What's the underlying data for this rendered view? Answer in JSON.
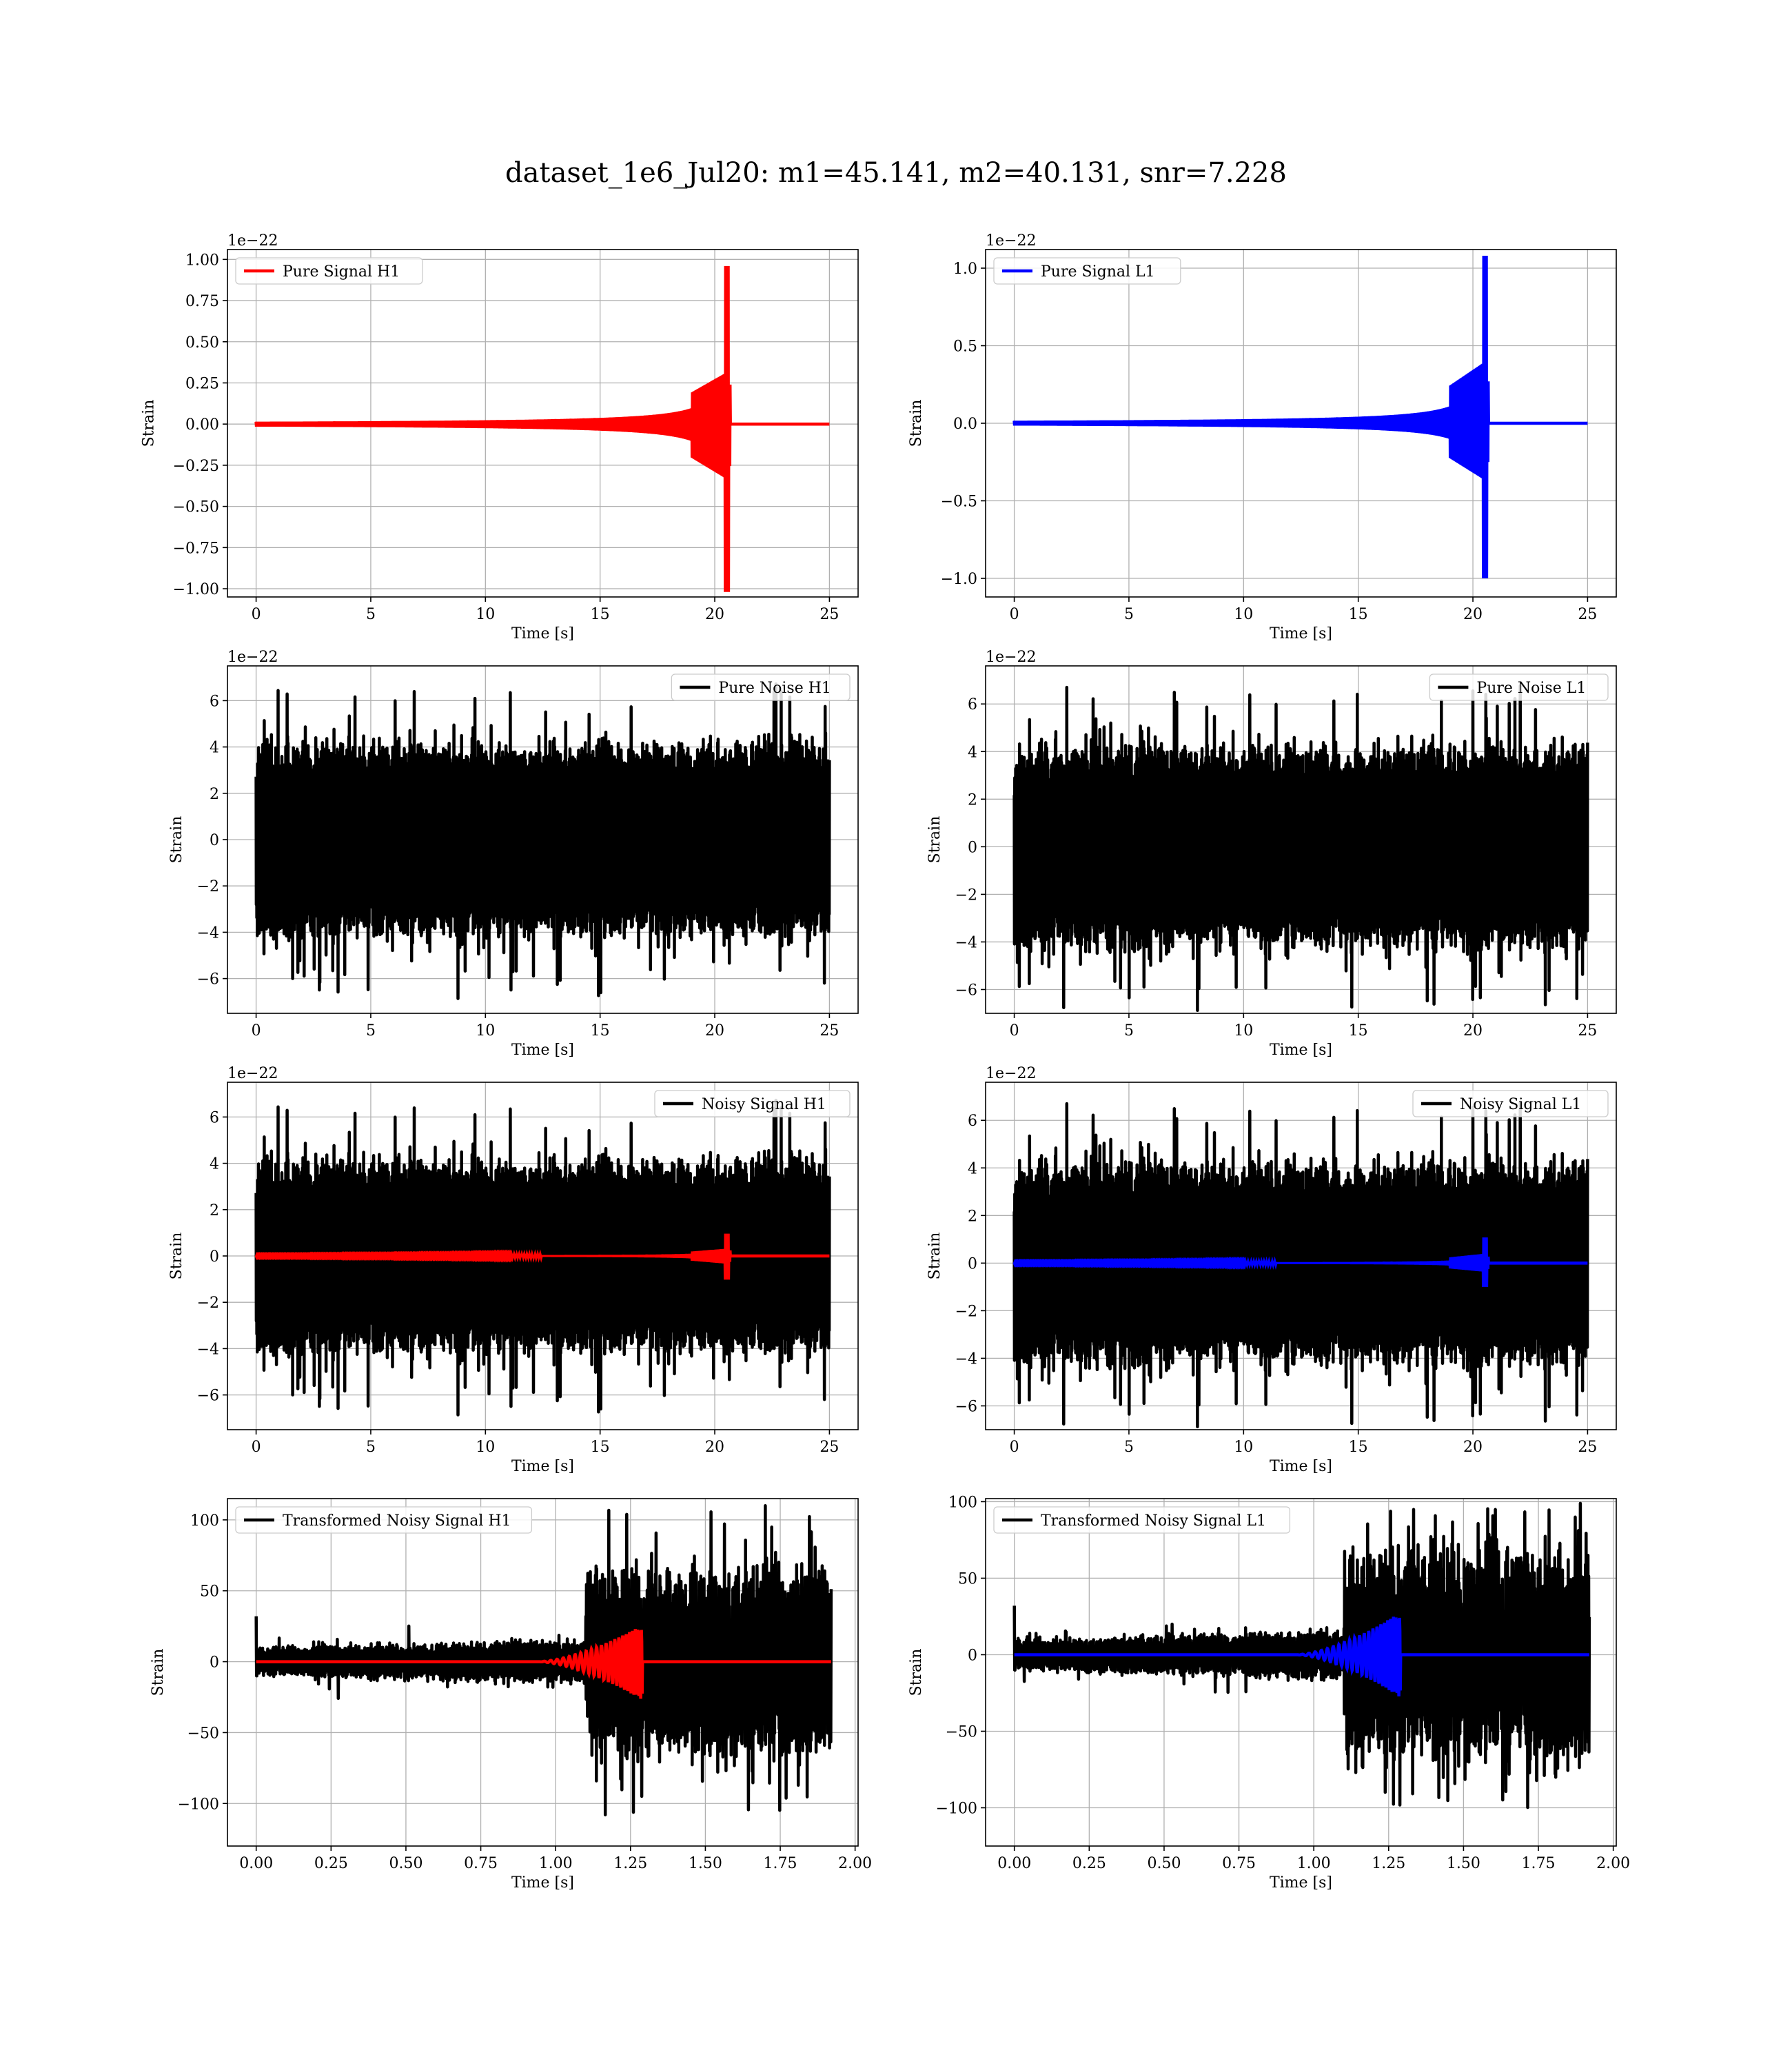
{
  "figure": {
    "title": "dataset_1e6_Jul20: m1=45.141, m2=40.131, snr=7.228"
  },
  "colors": {
    "h1_signal": "#ff0000",
    "l1_signal": "#0000ff",
    "noise": "#000000",
    "grid": "#b0b0b0"
  },
  "chart_data": [
    {
      "type": "line",
      "panel": "pure-signal-h1",
      "xlabel": "Time [s]",
      "ylabel": "Strain",
      "offset_text": "1e−22",
      "xlim": [
        -1.25,
        26.25
      ],
      "ylim": [
        -1.05,
        1.06
      ],
      "xticks": [
        0,
        5,
        10,
        15,
        20,
        25
      ],
      "xtick_labels": [
        "0",
        "5",
        "10",
        "15",
        "20",
        "25"
      ],
      "yticks": [
        -1.0,
        -0.75,
        -0.5,
        -0.25,
        0.0,
        0.25,
        0.5,
        0.75,
        1.0
      ],
      "ytick_labels": [
        "−1.00",
        "−0.75",
        "−0.50",
        "−0.25",
        "0.00",
        "0.25",
        "0.50",
        "0.75",
        "1.00"
      ],
      "grid": true,
      "legend": "upper left",
      "series": [
        {
          "name": "Pure Signal H1",
          "color": "#ff0000",
          "kind": "chirp",
          "x_range": [
            0,
            25
          ],
          "merger": 20.6,
          "peak_pos": 0.96,
          "peak_neg": -1.02,
          "early": 0.015,
          "plateau": 0.33
        }
      ]
    },
    {
      "type": "line",
      "panel": "pure-signal-l1",
      "xlabel": "Time [s]",
      "ylabel": "Strain",
      "offset_text": "1e−22",
      "xlim": [
        -1.25,
        26.25
      ],
      "ylim": [
        -1.12,
        1.12
      ],
      "xticks": [
        0,
        5,
        10,
        15,
        20,
        25
      ],
      "xtick_labels": [
        "0",
        "5",
        "10",
        "15",
        "20",
        "25"
      ],
      "yticks": [
        -1.0,
        -0.5,
        0.0,
        0.5,
        1.0
      ],
      "ytick_labels": [
        "−1.0",
        "−0.5",
        "0.0",
        "0.5",
        "1.0"
      ],
      "grid": true,
      "legend": "upper left",
      "series": [
        {
          "name": "Pure Signal L1",
          "color": "#0000ff",
          "kind": "chirp",
          "x_range": [
            0,
            25
          ],
          "merger": 20.6,
          "peak_pos": 1.08,
          "peak_neg": -1.0,
          "early": 0.015,
          "plateau": 0.37
        }
      ]
    },
    {
      "type": "line",
      "panel": "pure-noise-h1",
      "xlabel": "Time [s]",
      "ylabel": "Strain",
      "offset_text": "1e−22",
      "xlim": [
        -1.25,
        26.25
      ],
      "ylim": [
        -7.5,
        7.5
      ],
      "xticks": [
        0,
        5,
        10,
        15,
        20,
        25
      ],
      "xtick_labels": [
        "0",
        "5",
        "10",
        "15",
        "20",
        "25"
      ],
      "yticks": [
        -6,
        -4,
        -2,
        0,
        2,
        4,
        6
      ],
      "ytick_labels": [
        "−6",
        "−4",
        "−2",
        "0",
        "2",
        "4",
        "6"
      ],
      "grid": true,
      "legend": "upper right",
      "series": [
        {
          "name": "Pure Noise H1",
          "color": "#000000",
          "kind": "noise",
          "x_range": [
            0,
            25
          ],
          "core": 3.4,
          "peak": 6.9,
          "seed": 11
        }
      ]
    },
    {
      "type": "line",
      "panel": "pure-noise-l1",
      "xlabel": "Time [s]",
      "ylabel": "Strain",
      "offset_text": "1e−22",
      "xlim": [
        -1.25,
        26.25
      ],
      "ylim": [
        -7.0,
        7.6
      ],
      "xticks": [
        0,
        5,
        10,
        15,
        20,
        25
      ],
      "xtick_labels": [
        "0",
        "5",
        "10",
        "15",
        "20",
        "25"
      ],
      "yticks": [
        -6,
        -4,
        -2,
        0,
        2,
        4,
        6
      ],
      "ytick_labels": [
        "−6",
        "−4",
        "−2",
        "0",
        "2",
        "4",
        "6"
      ],
      "grid": true,
      "legend": "upper right",
      "series": [
        {
          "name": "Pure Noise L1",
          "color": "#000000",
          "kind": "noise",
          "x_range": [
            0,
            25
          ],
          "core": 3.4,
          "peak": 6.9,
          "seed": 23
        }
      ]
    },
    {
      "type": "line",
      "panel": "noisy-signal-h1",
      "xlabel": "Time [s]",
      "ylabel": "Strain",
      "offset_text": "1e−22",
      "xlim": [
        -1.25,
        26.25
      ],
      "ylim": [
        -7.5,
        7.5
      ],
      "xticks": [
        0,
        5,
        10,
        15,
        20,
        25
      ],
      "xtick_labels": [
        "0",
        "5",
        "10",
        "15",
        "20",
        "25"
      ],
      "yticks": [
        -6,
        -4,
        -2,
        0,
        2,
        4,
        6
      ],
      "ytick_labels": [
        "−6",
        "−4",
        "−2",
        "0",
        "2",
        "4",
        "6"
      ],
      "grid": true,
      "legend": "upper right",
      "series": [
        {
          "name": "Noisy Signal H1",
          "color": "#000000",
          "kind": "noise",
          "x_range": [
            0,
            25
          ],
          "core": 3.4,
          "peak": 6.9,
          "seed": 11
        },
        {
          "color": "#ff0000",
          "kind": "chirp",
          "x_range": [
            0,
            25
          ],
          "merger": 20.6,
          "peak_pos": 0.96,
          "peak_neg": -1.02,
          "early": 0.015,
          "plateau": 0.33
        }
      ]
    },
    {
      "type": "line",
      "panel": "noisy-signal-l1",
      "xlabel": "Time [s]",
      "ylabel": "Strain",
      "offset_text": "1e−22",
      "xlim": [
        -1.25,
        26.25
      ],
      "ylim": [
        -7.0,
        7.6
      ],
      "xticks": [
        0,
        5,
        10,
        15,
        20,
        25
      ],
      "xtick_labels": [
        "0",
        "5",
        "10",
        "15",
        "20",
        "25"
      ],
      "yticks": [
        -6,
        -4,
        -2,
        0,
        2,
        4,
        6
      ],
      "ytick_labels": [
        "−6",
        "−4",
        "−2",
        "0",
        "2",
        "4",
        "6"
      ],
      "grid": true,
      "legend": "upper right",
      "series": [
        {
          "name": "Noisy Signal L1",
          "color": "#000000",
          "kind": "noise",
          "x_range": [
            0,
            25
          ],
          "core": 3.4,
          "peak": 6.9,
          "seed": 23
        },
        {
          "color": "#0000ff",
          "kind": "chirp",
          "x_range": [
            0,
            25
          ],
          "merger": 20.6,
          "peak_pos": 1.08,
          "peak_neg": -1.0,
          "early": 0.015,
          "plateau": 0.37
        }
      ]
    },
    {
      "type": "line",
      "panel": "transformed-noisy-signal-h1",
      "xlabel": "Time [s]",
      "ylabel": "Strain",
      "offset_text": "",
      "xlim": [
        -0.096,
        2.01
      ],
      "ylim": [
        -130,
        115
      ],
      "xticks": [
        0.0,
        0.25,
        0.5,
        0.75,
        1.0,
        1.25,
        1.5,
        1.75,
        2.0
      ],
      "xtick_labels": [
        "0.00",
        "0.25",
        "0.50",
        "0.75",
        "1.00",
        "1.25",
        "1.50",
        "1.75",
        "2.00"
      ],
      "yticks": [
        -100,
        -50,
        0,
        50,
        100
      ],
      "ytick_labels": [
        "−100",
        "−50",
        "0",
        "50",
        "100"
      ],
      "grid": true,
      "legend": "upper left",
      "series": [
        {
          "name": "Transformed Noisy Signal H1",
          "color": "#000000",
          "kind": "whitened",
          "x_range": [
            0,
            1.92
          ],
          "onset": 1.1,
          "pre": 9,
          "post": 62,
          "peak": 110,
          "seed": 37
        },
        {
          "color": "#ff0000",
          "kind": "whitened_chirp",
          "x_range": [
            0,
            1.92
          ],
          "merger": 1.29,
          "peak_pos": 26,
          "peak_neg": -27
        }
      ]
    },
    {
      "type": "line",
      "panel": "transformed-noisy-signal-l1",
      "xlabel": "Time [s]",
      "ylabel": "Strain",
      "offset_text": "",
      "xlim": [
        -0.096,
        2.01
      ],
      "ylim": [
        -125,
        102
      ],
      "xticks": [
        0.0,
        0.25,
        0.5,
        0.75,
        1.0,
        1.25,
        1.5,
        1.75,
        2.0
      ],
      "xtick_labels": [
        "0.00",
        "0.25",
        "0.50",
        "0.75",
        "1.00",
        "1.25",
        "1.50",
        "1.75",
        "2.00"
      ],
      "yticks": [
        -100,
        -50,
        0,
        50,
        100
      ],
      "ytick_labels": [
        "−100",
        "−50",
        "0",
        "50",
        "100"
      ],
      "grid": true,
      "legend": "upper left",
      "series": [
        {
          "name": "Transformed Noisy Signal L1",
          "color": "#000000",
          "kind": "whitened",
          "x_range": [
            0,
            1.92
          ],
          "onset": 1.1,
          "pre": 9,
          "post": 62,
          "peak": 100,
          "seed": 53
        },
        {
          "color": "#0000ff",
          "kind": "whitened_chirp",
          "x_range": [
            0,
            1.92
          ],
          "merger": 1.29,
          "peak_pos": 28,
          "peak_neg": -28
        }
      ]
    }
  ]
}
